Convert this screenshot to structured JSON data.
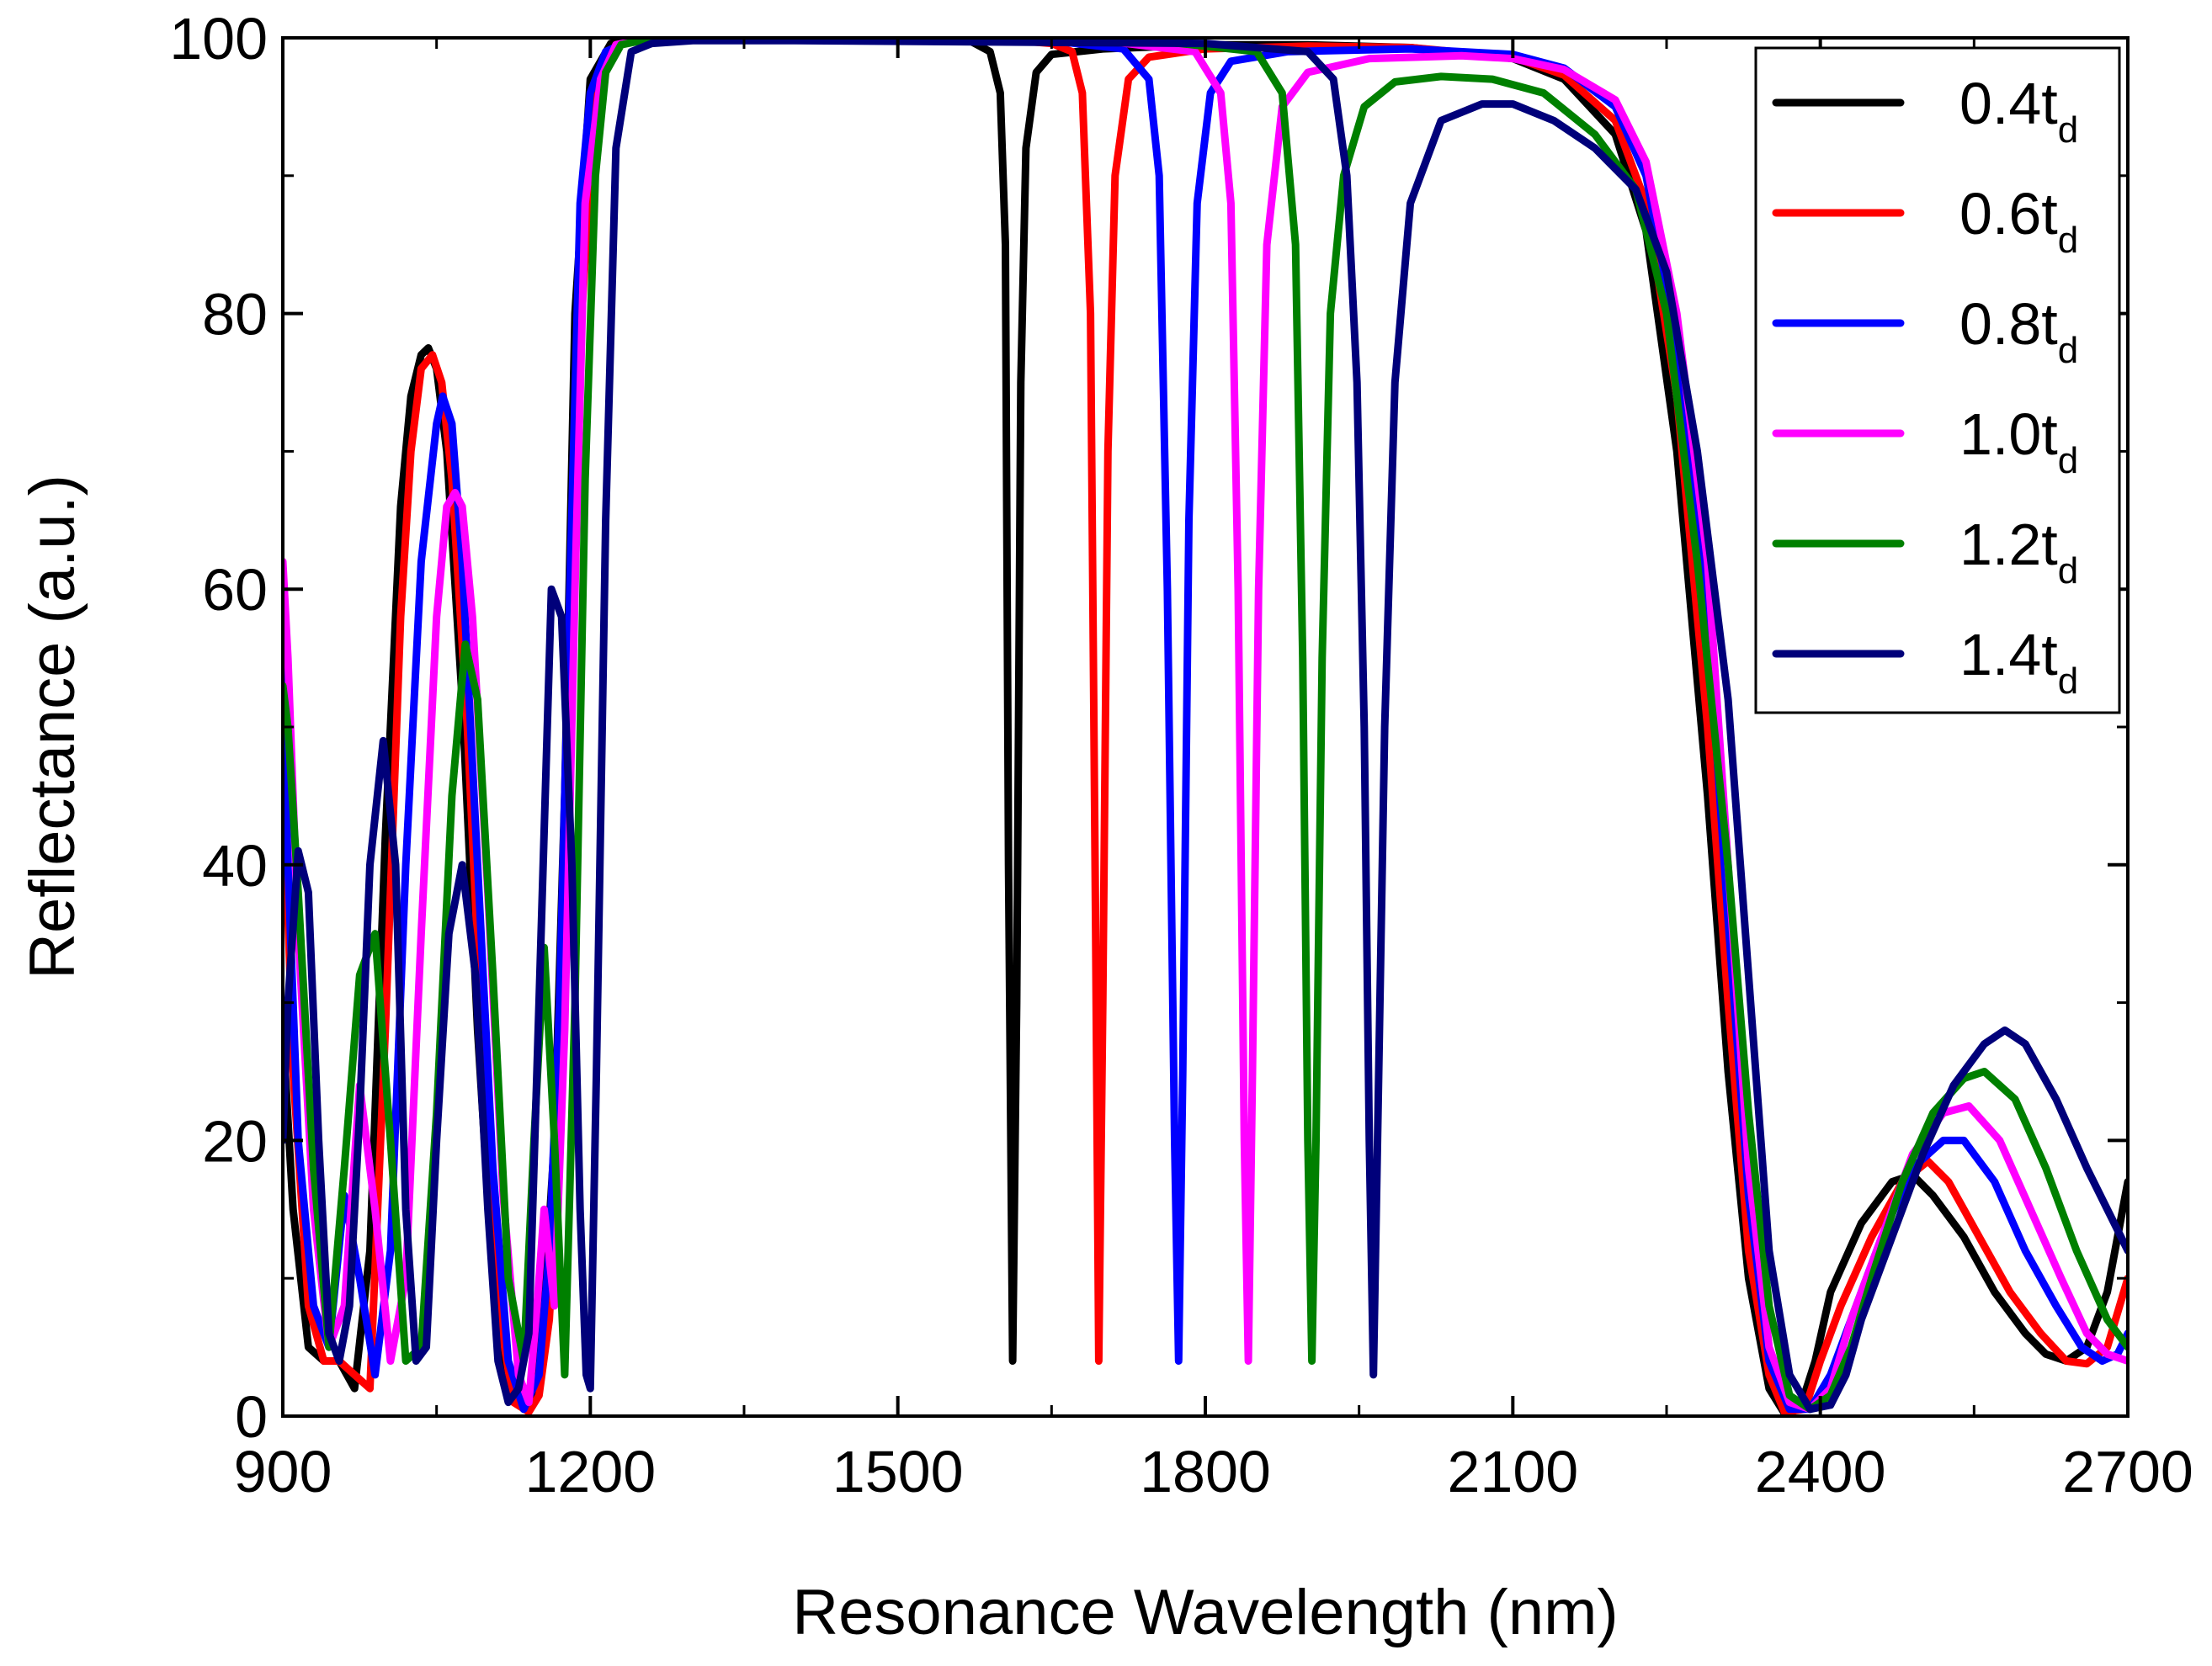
{
  "chart_data": {
    "type": "line",
    "title": "",
    "xlabel": "Resonance Wavelength (nm)",
    "ylabel": "Reflectance (a.u.)",
    "xlim": [
      900,
      2700
    ],
    "ylim": [
      0,
      100
    ],
    "xticks": [
      900,
      1200,
      1500,
      1800,
      2100,
      2400,
      2700
    ],
    "yticks": [
      0,
      20,
      40,
      60,
      80,
      100
    ],
    "legend_position": "top-right",
    "series": [
      {
        "name": "0.4t_d",
        "label_main": "0.4t",
        "label_sub": "d",
        "color": "#000000",
        "x": [
          900,
          910,
          925,
          940,
          955,
          970,
          985,
          1000,
          1015,
          1025,
          1035,
          1042,
          1050,
          1060,
          1075,
          1090,
          1105,
          1120,
          1135,
          1145,
          1155,
          1165,
          1175,
          1185,
          1200,
          1220,
          1260,
          1350,
          1500,
          1570,
          1590,
          1600,
          1605,
          1608,
          1612,
          1616,
          1620,
          1625,
          1635,
          1650,
          1700,
          1800,
          1900,
          2000,
          2100,
          2150,
          2200,
          2230,
          2260,
          2290,
          2310,
          2330,
          2350,
          2365,
          2380,
          2395,
          2410,
          2440,
          2470,
          2490,
          2510,
          2540,
          2570,
          2600,
          2620,
          2640,
          2660,
          2680,
          2700
        ],
        "y": [
          28,
          15,
          5,
          4,
          4,
          2,
          12,
          42,
          66,
          74,
          77,
          77.5,
          76,
          70,
          52,
          28,
          10,
          2,
          0.5,
          2,
          8,
          20,
          45,
          80,
          97,
          99.6,
          100,
          100,
          99.9,
          99.8,
          99,
          96,
          85,
          40,
          4,
          30,
          75,
          92,
          97.5,
          98.8,
          99.2,
          99.5,
          99.5,
          99.3,
          98.5,
          97,
          93,
          86,
          70,
          45,
          25,
          10,
          2,
          0.2,
          0.5,
          4,
          9,
          14,
          17,
          17.5,
          16,
          13,
          9,
          6,
          4.5,
          4,
          5,
          9,
          17
        ]
      },
      {
        "name": "0.6t_d",
        "label_main": "0.6t",
        "label_sub": "d",
        "color": "#ff0000",
        "x": [
          900,
          910,
          925,
          940,
          955,
          970,
          985,
          1000,
          1015,
          1025,
          1035,
          1046,
          1055,
          1065,
          1080,
          1095,
          1110,
          1125,
          1140,
          1150,
          1160,
          1170,
          1180,
          1190,
          1205,
          1225,
          1265,
          1400,
          1600,
          1650,
          1670,
          1680,
          1688,
          1693,
          1696,
          1700,
          1705,
          1712,
          1725,
          1745,
          1800,
          1900,
          2000,
          2100,
          2150,
          2200,
          2230,
          2260,
          2290,
          2310,
          2330,
          2350,
          2365,
          2385,
          2400,
          2420,
          2450,
          2480,
          2505,
          2525,
          2555,
          2585,
          2615,
          2640,
          2660,
          2680,
          2700
        ],
        "y": [
          48,
          25,
          8,
          4,
          4,
          3,
          2,
          28,
          58,
          70,
          76,
          77,
          75,
          68,
          50,
          26,
          8,
          1,
          0.3,
          1.5,
          7,
          20,
          45,
          78,
          96,
          99.5,
          100,
          100,
          99.9,
          99.6,
          99,
          96,
          80,
          35,
          4,
          30,
          70,
          90,
          97,
          98.6,
          99.2,
          99.4,
          99.3,
          98.6,
          97.3,
          94,
          88,
          74,
          50,
          30,
          12,
          3,
          0.3,
          0.5,
          4,
          8,
          13,
          17,
          18.5,
          17,
          13,
          9,
          6,
          4,
          3.8,
          5,
          10
        ]
      },
      {
        "name": "0.8t_d",
        "label_main": "0.8t",
        "label_sub": "d",
        "color": "#0000ff",
        "x": [
          900,
          905,
          915,
          930,
          945,
          960,
          975,
          990,
          1005,
          1020,
          1035,
          1050,
          1056,
          1065,
          1075,
          1090,
          1105,
          1120,
          1135,
          1150,
          1160,
          1170,
          1180,
          1190,
          1200,
          1215,
          1235,
          1275,
          1400,
          1650,
          1720,
          1745,
          1755,
          1763,
          1770,
          1774,
          1778,
          1784,
          1792,
          1805,
          1825,
          1880,
          2000,
          2100,
          2150,
          2200,
          2230,
          2260,
          2290,
          2310,
          2330,
          2350,
          2370,
          2390,
          2410,
          2430,
          2460,
          2490,
          2520,
          2540,
          2570,
          2600,
          2630,
          2655,
          2675,
          2690,
          2700
        ],
        "y": [
          55,
          40,
          20,
          8,
          5,
          16,
          10,
          3,
          12,
          40,
          62,
          72,
          74,
          72,
          62,
          40,
          18,
          4,
          0.5,
          3,
          12,
          30,
          60,
          88,
          96,
          99,
          99.7,
          100,
          100,
          99.8,
          99.2,
          97,
          90,
          60,
          20,
          4,
          25,
          65,
          88,
          96,
          98.3,
          99,
          99.2,
          98.8,
          97.8,
          95,
          90,
          78,
          58,
          36,
          16,
          4,
          0.5,
          0.5,
          3,
          7,
          13,
          18,
          20,
          20,
          17,
          12,
          8,
          5,
          4,
          4.5,
          6
        ]
      },
      {
        "name": "1.0t_d",
        "label_main": "1.0t",
        "label_sub": "d",
        "color": "#ff00ff",
        "x": [
          900,
          905,
          915,
          930,
          945,
          960,
          975,
          990,
          1005,
          1020,
          1035,
          1050,
          1060,
          1068,
          1075,
          1085,
          1100,
          1115,
          1130,
          1140,
          1148,
          1155,
          1165,
          1175,
          1185,
          1195,
          1210,
          1225,
          1245,
          1285,
          1400,
          1700,
          1790,
          1815,
          1825,
          1832,
          1838,
          1842,
          1846,
          1852,
          1860,
          1875,
          1900,
          1960,
          2050,
          2100,
          2150,
          2200,
          2230,
          2260,
          2290,
          2310,
          2330,
          2350,
          2370,
          2390,
          2410,
          2430,
          2460,
          2490,
          2520,
          2545,
          2575,
          2605,
          2635,
          2660,
          2680,
          2700
        ],
        "y": [
          62,
          55,
          35,
          15,
          5,
          8,
          24,
          15,
          4,
          10,
          35,
          58,
          66,
          67,
          66,
          58,
          38,
          16,
          3,
          1,
          8,
          15,
          8,
          28,
          60,
          88,
          97,
          99.5,
          99.8,
          100,
          100,
          99.8,
          99,
          96,
          88,
          60,
          20,
          4,
          25,
          60,
          85,
          95,
          97.5,
          98.5,
          98.7,
          98.5,
          97.7,
          95.5,
          91,
          80,
          62,
          40,
          18,
          5,
          1,
          0.5,
          2,
          7,
          13,
          19,
          22,
          22.5,
          20,
          15,
          10,
          6,
          4.5,
          4
        ]
      },
      {
        "name": "1.2t_d",
        "label_main": "1.2t",
        "label_sub": "d",
        "color": "#008000",
        "x": [
          900,
          905,
          915,
          930,
          945,
          960,
          975,
          990,
          1005,
          1020,
          1035,
          1050,
          1065,
          1078,
          1090,
          1105,
          1120,
          1135,
          1145,
          1155,
          1165,
          1175,
          1185,
          1195,
          1205,
          1215,
          1230,
          1250,
          1290,
          1400,
          1750,
          1850,
          1875,
          1888,
          1895,
          1900,
          1904,
          1908,
          1914,
          1922,
          1935,
          1955,
          1985,
          2030,
          2080,
          2130,
          2180,
          2220,
          2250,
          2280,
          2310,
          2330,
          2350,
          2370,
          2390,
          2410,
          2430,
          2450,
          2480,
          2510,
          2540,
          2560,
          2590,
          2620,
          2650,
          2680,
          2700
        ],
        "y": [
          53,
          50,
          38,
          18,
          5,
          18,
          32,
          35,
          20,
          4,
          5,
          22,
          45,
          56,
          52,
          32,
          10,
          4,
          20,
          34,
          20,
          3,
          30,
          68,
          90,
          97.5,
          99.5,
          99.8,
          100,
          100,
          99.8,
          99,
          96,
          85,
          55,
          20,
          4,
          20,
          55,
          80,
          90,
          95,
          96.8,
          97.2,
          97,
          96,
          93,
          89,
          80,
          62,
          40,
          22,
          8,
          1.5,
          0.5,
          1.5,
          5,
          10,
          17,
          22,
          24.5,
          25,
          23,
          18,
          12,
          7,
          5
        ]
      },
      {
        "name": "1.4t_d",
        "label_main": "1.4t",
        "label_sub": "d",
        "color": "#00007a",
        "x": [
          900,
          905,
          915,
          925,
          935,
          945,
          955,
          965,
          975,
          985,
          998,
          1010,
          1020,
          1030,
          1040,
          1050,
          1062,
          1075,
          1088,
          1100,
          1110,
          1120,
          1130,
          1140,
          1150,
          1162,
          1172,
          1182,
          1190,
          1196,
          1200,
          1206,
          1215,
          1225,
          1240,
          1260,
          1300,
          1400,
          1800,
          1900,
          1925,
          1938,
          1948,
          1955,
          1960,
          1964,
          1968,
          1975,
          1985,
          2000,
          2030,
          2070,
          2100,
          2140,
          2180,
          2220,
          2250,
          2280,
          2310,
          2330,
          2350,
          2370,
          2390,
          2410,
          2425,
          2440,
          2470,
          2500,
          2530,
          2560,
          2580,
          2600,
          2630,
          2660,
          2680,
          2700
        ],
        "y": [
          20,
          30,
          41,
          38,
          20,
          6,
          4,
          8,
          22,
          40,
          49,
          40,
          15,
          4,
          5,
          20,
          35,
          40,
          32,
          15,
          4,
          1,
          2,
          6,
          30,
          60,
          58,
          40,
          15,
          3,
          2,
          25,
          65,
          92,
          99,
          99.6,
          99.8,
          99.8,
          99.6,
          99,
          97,
          90,
          75,
          50,
          20,
          3,
          20,
          50,
          75,
          88,
          94,
          95.2,
          95.2,
          94,
          92,
          89,
          83,
          70,
          52,
          32,
          12,
          3,
          0.5,
          0.8,
          3,
          7,
          13,
          19,
          24,
          27,
          28,
          27,
          23,
          18,
          15,
          12
        ]
      }
    ]
  }
}
